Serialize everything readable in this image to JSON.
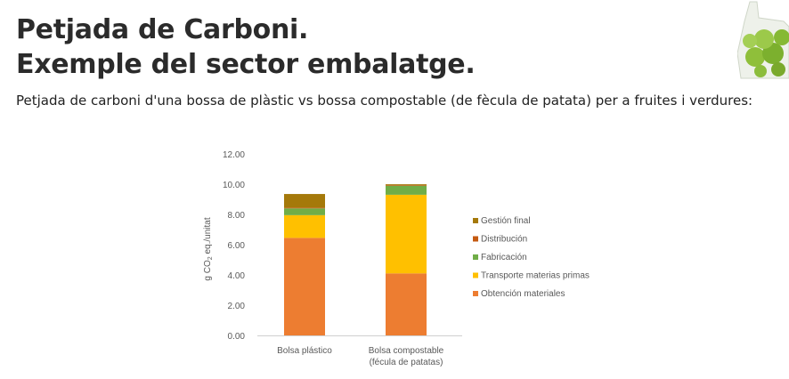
{
  "slide": {
    "title_line1": "Petjada de Carboni.",
    "title_line2": "Exemple del sector embalatge.",
    "subtitle": "Petjada de carboni d'una bossa de plàstic vs bossa compostable (de fècula de patata) per a fruites i verdures:"
  },
  "decor": {
    "icon": "bag-of-green-apples-icon"
  },
  "chart_data": {
    "type": "bar",
    "stacked": true,
    "categories": [
      [
        "Bolsa plástico"
      ],
      [
        "Bolsa compostable",
        "(fécula de patatas)"
      ]
    ],
    "series": [
      {
        "name": "Obtención materiales",
        "color": "#ED7D31",
        "values": [
          6.45,
          4.1
        ]
      },
      {
        "name": "Transporte materias primas",
        "color": "#FFC000",
        "values": [
          1.5,
          5.2
        ]
      },
      {
        "name": "Fabricación",
        "color": "#70AD47",
        "values": [
          0.45,
          0.6
        ]
      },
      {
        "name": "Distribución",
        "color": "#C55A11",
        "values": [
          0.05,
          0.05
        ]
      },
      {
        "name": "Gestión final",
        "color": "#A5790A",
        "values": [
          0.9,
          0.05
        ]
      }
    ],
    "yticks": [
      "0.00",
      "2.00",
      "4.00",
      "6.00",
      "8.00",
      "10.00",
      "12.00"
    ],
    "ylim": [
      0,
      12
    ],
    "ylabel_main": "g CO",
    "ylabel_sub": "2",
    "ylabel_rest": " eq./unitat",
    "legend_position": "right",
    "legend_order": [
      "Gestión final",
      "Distribución",
      "Fabricación",
      "Transporte materias primas",
      "Obtención materiales"
    ],
    "grid": false
  }
}
